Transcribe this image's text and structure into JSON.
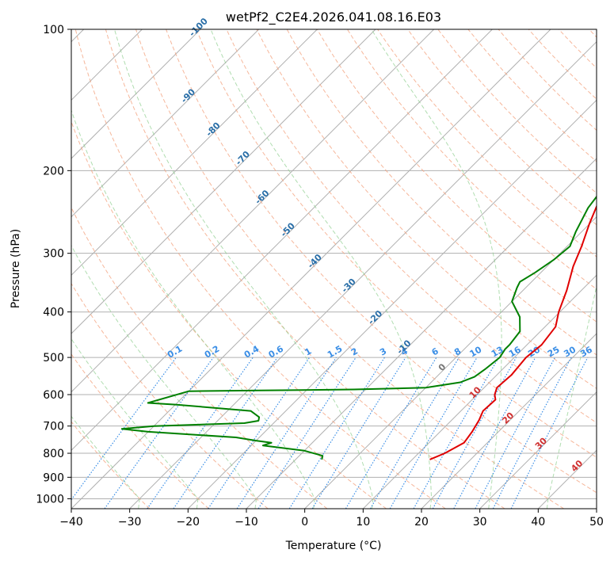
{
  "chart_data": {
    "type": "line",
    "title": "wetPf2_C2E4.2026.041.08.16.E03",
    "xlabel": "Temperature (°C)",
    "ylabel": "Pressure (hPa)",
    "xlim": [
      -40,
      50
    ],
    "ylim": [
      1050,
      100
    ],
    "x_ticks": [
      -40,
      -30,
      -20,
      -10,
      0,
      10,
      20,
      30,
      40,
      50
    ],
    "y_ticks": [
      1000,
      900,
      800,
      700,
      600,
      500,
      400,
      300,
      200,
      100
    ],
    "grid": true,
    "series": [
      {
        "name": "Temperature",
        "color": "#e00000",
        "points": [
          [
            13.0,
            825
          ],
          [
            14.5,
            800
          ],
          [
            16.0,
            760
          ],
          [
            15.5,
            720
          ],
          [
            14.7,
            680
          ],
          [
            13.8,
            650
          ],
          [
            14.0,
            615
          ],
          [
            13.0,
            600
          ],
          [
            12.2,
            580
          ],
          [
            12.5,
            545
          ],
          [
            12.0,
            500
          ],
          [
            12.5,
            470
          ],
          [
            11.8,
            430
          ],
          [
            9.8,
            400
          ],
          [
            7.5,
            360
          ],
          [
            4.5,
            320
          ],
          [
            2.5,
            290
          ],
          [
            0,
            260
          ],
          [
            -2.5,
            230
          ],
          [
            -4.3,
            200
          ],
          [
            -4.0,
            195
          ],
          [
            -2.0,
            185
          ],
          [
            0,
            180
          ],
          [
            4.5,
            170
          ],
          [
            9.0,
            160
          ],
          [
            13.0,
            150
          ],
          [
            16.5,
            140
          ],
          [
            18.0,
            130
          ],
          [
            18.0,
            120
          ],
          [
            17.5,
            115
          ],
          [
            17.0,
            110
          ],
          [
            18.0,
            104
          ],
          [
            19.0,
            100
          ]
        ]
      },
      {
        "name": "Dewpoint",
        "color": "#008000",
        "points": [
          [
            -5.5,
            825
          ],
          [
            -6.0,
            810
          ],
          [
            -10.0,
            790
          ],
          [
            -18.0,
            770
          ],
          [
            -17.0,
            760
          ],
          [
            -20.0,
            752
          ],
          [
            -24.0,
            740
          ],
          [
            -40.0,
            720
          ],
          [
            -45.0,
            710
          ],
          [
            -40.0,
            700
          ],
          [
            -25.0,
            690
          ],
          [
            -23.0,
            682
          ],
          [
            -23.5,
            670
          ],
          [
            -26.0,
            650
          ],
          [
            -40.0,
            630
          ],
          [
            -45.0,
            625
          ],
          [
            -40.0,
            590
          ],
          [
            -28.0,
            588
          ],
          [
            -12.0,
            585
          ],
          [
            0.0,
            580
          ],
          [
            5.0,
            565
          ],
          [
            6.5,
            550
          ],
          [
            7.0,
            530
          ],
          [
            7.5,
            500
          ],
          [
            7.0,
            480
          ],
          [
            7.0,
            470
          ],
          [
            6.5,
            440
          ],
          [
            4.0,
            410
          ],
          [
            0.0,
            380
          ],
          [
            -1.5,
            355
          ],
          [
            -2.0,
            345
          ],
          [
            -1.0,
            330
          ],
          [
            0,
            310
          ],
          [
            0.5,
            290
          ],
          [
            -1.0,
            270
          ],
          [
            -3.0,
            240
          ],
          [
            -4.5,
            200
          ],
          [
            -4.0,
            195
          ],
          [
            -9.0,
            180
          ],
          [
            -13.0,
            170
          ],
          [
            -15.5,
            160
          ],
          [
            -14.0,
            155
          ],
          [
            -10.0,
            150
          ],
          [
            -7.0,
            140
          ],
          [
            -6.5,
            130
          ],
          [
            -5.5,
            120
          ],
          [
            -2.5,
            110
          ],
          [
            0,
            100
          ]
        ]
      }
    ],
    "dry_adiabat_labels": [
      "-100",
      "-90",
      "-80",
      "-70",
      "-60",
      "-50",
      "-40",
      "-30",
      "-20",
      "-10"
    ],
    "mixing_ratio_labels": [
      "0.1",
      "0.2",
      "0.4",
      "0.6",
      "1",
      "1.5",
      "2",
      "3",
      "4",
      "6",
      "8",
      "10",
      "13",
      "16",
      "20",
      "25",
      "30",
      "36"
    ],
    "isotherm_labels": [
      "0",
      "10",
      "20",
      "30",
      "40"
    ]
  }
}
